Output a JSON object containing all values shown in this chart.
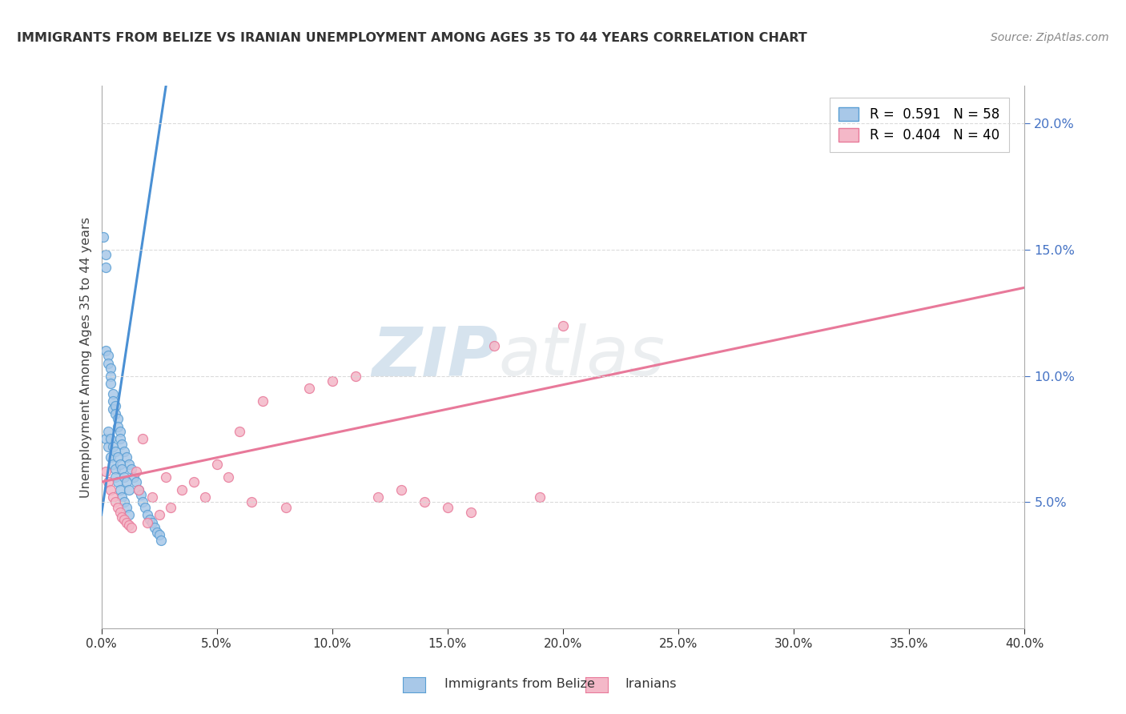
{
  "title": "IMMIGRANTS FROM BELIZE VS IRANIAN UNEMPLOYMENT AMONG AGES 35 TO 44 YEARS CORRELATION CHART",
  "source": "Source: ZipAtlas.com",
  "ylabel": "Unemployment Among Ages 35 to 44 years",
  "blue_color": "#a8c8e8",
  "pink_color": "#f4b8c8",
  "blue_edge_color": "#5a9fd4",
  "pink_edge_color": "#e87a9a",
  "blue_line_color": "#4a90d4",
  "pink_line_color": "#e8799a",
  "watermark_color": "#c8d8e8",
  "grid_color": "#d8d8d8",
  "background_color": "#ffffff",
  "right_tick_color": "#4472c4",
  "xmin": 0.0,
  "xmax": 0.4,
  "ymin": 0.0,
  "ymax": 0.215,
  "yticks_right": [
    0.05,
    0.1,
    0.15,
    0.2
  ],
  "xticks": [
    0.0,
    0.05,
    0.1,
    0.15,
    0.2,
    0.25,
    0.3,
    0.35,
    0.4
  ],
  "blue_scatter_x": [
    0.001,
    0.002,
    0.002,
    0.002,
    0.002,
    0.003,
    0.003,
    0.003,
    0.004,
    0.004,
    0.004,
    0.004,
    0.005,
    0.005,
    0.005,
    0.005,
    0.006,
    0.006,
    0.006,
    0.006,
    0.007,
    0.007,
    0.007,
    0.008,
    0.008,
    0.008,
    0.009,
    0.009,
    0.01,
    0.01,
    0.011,
    0.011,
    0.012,
    0.012,
    0.013,
    0.014,
    0.015,
    0.016,
    0.017,
    0.018,
    0.019,
    0.02,
    0.021,
    0.022,
    0.023,
    0.024,
    0.025,
    0.026,
    0.003,
    0.004,
    0.005,
    0.006,
    0.007,
    0.008,
    0.009,
    0.01,
    0.011,
    0.012
  ],
  "blue_scatter_y": [
    0.155,
    0.148,
    0.143,
    0.11,
    0.075,
    0.108,
    0.105,
    0.072,
    0.103,
    0.1,
    0.097,
    0.068,
    0.093,
    0.09,
    0.087,
    0.065,
    0.088,
    0.085,
    0.063,
    0.06,
    0.083,
    0.08,
    0.058,
    0.078,
    0.075,
    0.055,
    0.073,
    0.052,
    0.07,
    0.05,
    0.068,
    0.048,
    0.065,
    0.045,
    0.063,
    0.06,
    0.058,
    0.055,
    0.053,
    0.05,
    0.048,
    0.045,
    0.043,
    0.042,
    0.04,
    0.038,
    0.037,
    0.035,
    0.078,
    0.075,
    0.072,
    0.07,
    0.068,
    0.065,
    0.063,
    0.06,
    0.058,
    0.055
  ],
  "pink_scatter_x": [
    0.002,
    0.003,
    0.004,
    0.005,
    0.006,
    0.007,
    0.008,
    0.009,
    0.01,
    0.011,
    0.012,
    0.013,
    0.015,
    0.016,
    0.018,
    0.02,
    0.022,
    0.025,
    0.028,
    0.03,
    0.035,
    0.04,
    0.045,
    0.05,
    0.055,
    0.06,
    0.065,
    0.07,
    0.08,
    0.09,
    0.1,
    0.11,
    0.12,
    0.13,
    0.14,
    0.15,
    0.16,
    0.17,
    0.19,
    0.2
  ],
  "pink_scatter_y": [
    0.062,
    0.058,
    0.055,
    0.052,
    0.05,
    0.048,
    0.046,
    0.044,
    0.043,
    0.042,
    0.041,
    0.04,
    0.062,
    0.055,
    0.075,
    0.042,
    0.052,
    0.045,
    0.06,
    0.048,
    0.055,
    0.058,
    0.052,
    0.065,
    0.06,
    0.078,
    0.05,
    0.09,
    0.048,
    0.095,
    0.098,
    0.1,
    0.052,
    0.055,
    0.05,
    0.048,
    0.046,
    0.112,
    0.052,
    0.12
  ],
  "blue_line_x": [
    0.0,
    0.028
  ],
  "blue_line_y": [
    0.045,
    0.215
  ],
  "pink_line_x": [
    0.0,
    0.4
  ],
  "pink_line_y": [
    0.058,
    0.135
  ],
  "legend_blue_text": "R =  0.591   N = 58",
  "legend_pink_text": "R =  0.404   N = 40",
  "watermark_zip": "ZIP",
  "watermark_atlas": "atlas"
}
